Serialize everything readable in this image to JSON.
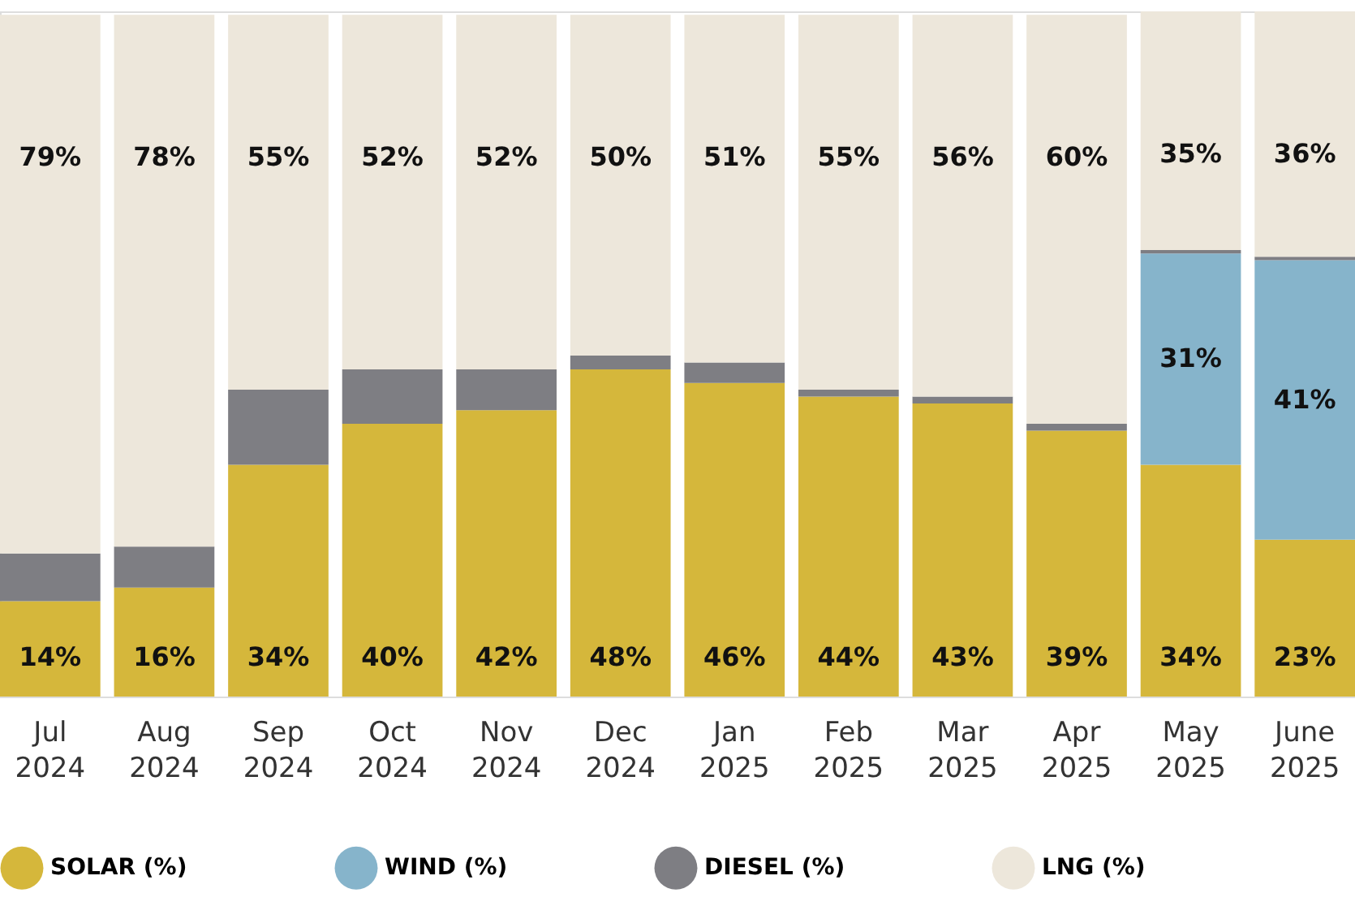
{
  "chart_data": {
    "type": "bar",
    "stacked": true,
    "tick_labels": "x",
    "legend": "bottom",
    "categories": [
      "Jul 2024",
      "Aug 2024",
      "Sep 2024",
      "Oct 2024",
      "Nov 2024",
      "Dec 2024",
      "Jan 2025",
      "Feb 2025",
      "Mar 2025",
      "Apr 2025",
      "May 2025",
      "June 2025"
    ],
    "series": [
      {
        "name": "SOLAR (%)",
        "color": "#d5b73b",
        "values": [
          14,
          16,
          34,
          40,
          42,
          48,
          46,
          44,
          43,
          39,
          34,
          23
        ],
        "value_labels": [
          "14%",
          "16%",
          "34%",
          "40%",
          "42%",
          "48%",
          "46%",
          "44%",
          "43%",
          "39%",
          "34%",
          "23%"
        ]
      },
      {
        "name": "WIND (%)",
        "color": "#86b4cb",
        "values": [
          0,
          0,
          0,
          0,
          0,
          0,
          0,
          0,
          0,
          0,
          31,
          41
        ],
        "value_labels": [
          null,
          null,
          null,
          null,
          null,
          null,
          null,
          null,
          null,
          null,
          "31%",
          "41%"
        ]
      },
      {
        "name": "DIESEL (%)",
        "color": "#7e7e83",
        "values": [
          7,
          6,
          11,
          8,
          6,
          2,
          3,
          1,
          1,
          1,
          0.5,
          0.5
        ],
        "value_labels": [
          null,
          null,
          null,
          null,
          null,
          null,
          null,
          null,
          null,
          null,
          null,
          null
        ]
      },
      {
        "name": "LNG (%)",
        "color": "#ede7db",
        "values": [
          79,
          78,
          55,
          52,
          52,
          50,
          51,
          55,
          56,
          60,
          35,
          36
        ],
        "value_labels": [
          "79%",
          "78%",
          "55%",
          "52%",
          "52%",
          "50%",
          "51%",
          "55%",
          "56%",
          "60%",
          "35%",
          "36%"
        ]
      }
    ]
  }
}
